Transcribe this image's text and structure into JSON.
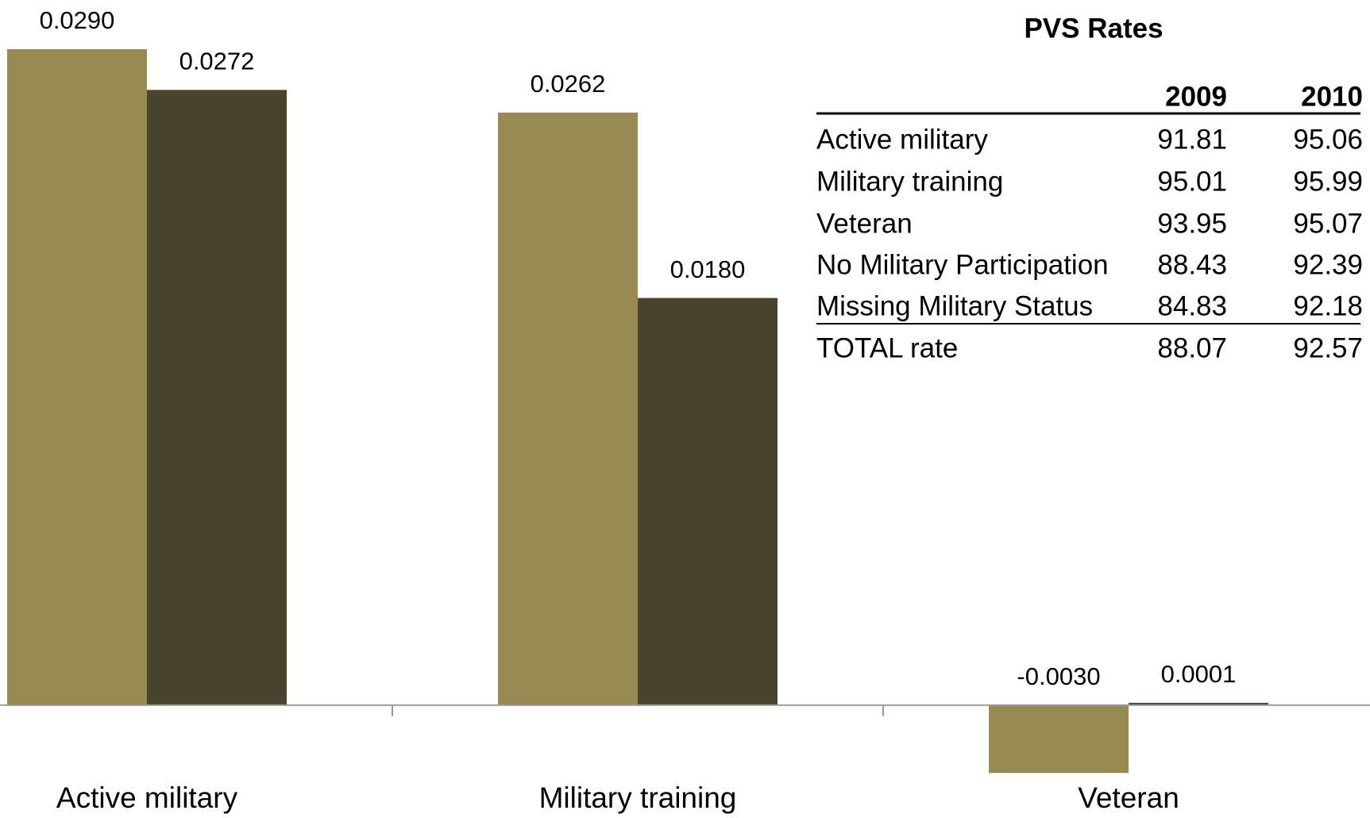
{
  "chart_data": {
    "type": "bar",
    "categories": [
      "Active military",
      "Military training",
      "Veteran"
    ],
    "series": [
      {
        "name": "2009",
        "color": "#968b52",
        "values": [
          0.029,
          0.0262,
          -0.003
        ],
        "value_labels": [
          "0.0290",
          "0.0262",
          "-0.0030"
        ]
      },
      {
        "name": "2010",
        "color": "#4b442c",
        "values": [
          0.0272,
          0.018,
          0.0001
        ],
        "value_labels": [
          "0.0272",
          "0.0180",
          "0.0001"
        ]
      }
    ],
    "ylim": [
      -0.0045,
      0.031
    ]
  },
  "table": {
    "title": "PVS Rates",
    "columns": [
      "2009",
      "2010"
    ],
    "rows": [
      [
        "Active military",
        "91.81",
        "95.06"
      ],
      [
        "Military training",
        "95.01",
        "95.99"
      ],
      [
        "Veteran",
        "93.95",
        "95.07"
      ],
      [
        "No Military Participation",
        "88.43",
        "92.39"
      ],
      [
        "Missing Military Status",
        "84.83",
        "92.18"
      ],
      [
        "TOTAL rate",
        "88.07",
        "92.57"
      ]
    ]
  }
}
